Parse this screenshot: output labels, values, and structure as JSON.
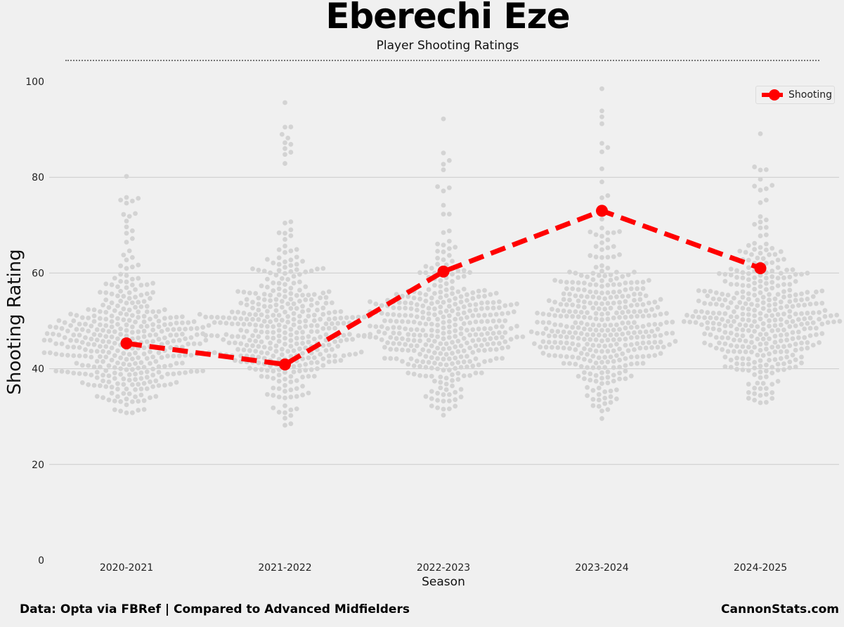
{
  "header": {
    "title": "Eberechi Eze",
    "subtitle": "Player Shooting Ratings"
  },
  "footer": {
    "source": "Data: Opta via FBRef | Compared to Advanced Midfielders",
    "brand": "CannonStats.com"
  },
  "colors": {
    "player_line": "#ff0000",
    "swarm_points": "#d3d3d3",
    "grid": "#cbcbcb",
    "background": "#f0f0f0"
  },
  "chart_data": {
    "type": "line",
    "title": "Eberechi Eze",
    "subtitle": "Player Shooting Ratings",
    "xlabel": "Season",
    "ylabel": "Shooting Rating",
    "categories": [
      "2020-2021",
      "2021-2022",
      "2022-2023",
      "2023-2024",
      "2024-2025"
    ],
    "ylim": [
      0,
      100
    ],
    "yticks": [
      0,
      20,
      40,
      60,
      80,
      100
    ],
    "grid": true,
    "legend_position": "top-right",
    "series": [
      {
        "name": "Shooting",
        "values": [
          45.3,
          40.9,
          60.3,
          73.0,
          61.0
        ],
        "style": "dashed line with circle markers"
      }
    ],
    "background_swarm": {
      "description": "distribution of advanced midfielders per season",
      "ranges": [
        {
          "season": "2020-2021",
          "min": 30.8,
          "max": 80.2,
          "center": 45
        },
        {
          "season": "2021-2022",
          "min": 28.2,
          "max": 95.6,
          "center": 48
        },
        {
          "season": "2022-2023",
          "min": 30.3,
          "max": 92.2,
          "center": 48
        },
        {
          "season": "2023-2024",
          "min": 29.6,
          "max": 98.5,
          "center": 49
        },
        {
          "season": "2024-2025",
          "min": 32.9,
          "max": 89.1,
          "center": 50
        }
      ]
    }
  }
}
